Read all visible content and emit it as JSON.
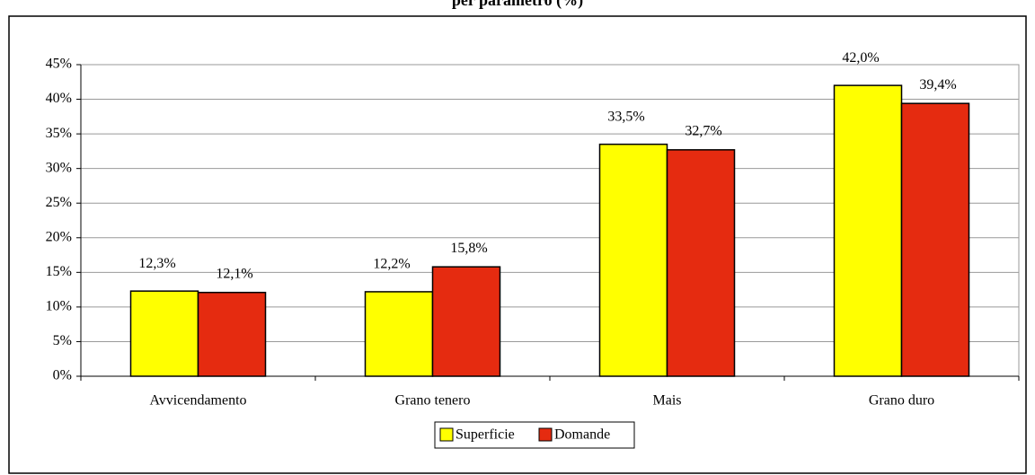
{
  "chart_data": {
    "type": "bar",
    "title": "per parametro (%)",
    "categories": [
      "Avvicendamento",
      "Grano tenero",
      "Mais",
      "Grano duro"
    ],
    "series": [
      {
        "name": "Superficie",
        "color": "#ffff00",
        "values": [
          12.3,
          12.2,
          33.5,
          42.0
        ],
        "value_labels": [
          "12,3%",
          "12,2%",
          "33,5%",
          "42,0%"
        ]
      },
      {
        "name": "Domande",
        "color": "#e52b10",
        "values": [
          12.1,
          15.8,
          32.7,
          39.4
        ],
        "value_labels": [
          "12,1%",
          "15,8%",
          "32,7%",
          "39,4%"
        ]
      }
    ],
    "ylim": [
      0,
      45
    ],
    "yticks": [
      {
        "value": 0,
        "label": "0%"
      },
      {
        "value": 5,
        "label": "5%"
      },
      {
        "value": 10,
        "label": "10%"
      },
      {
        "value": 15,
        "label": "15%"
      },
      {
        "value": 20,
        "label": "20%"
      },
      {
        "value": 25,
        "label": "25%"
      },
      {
        "value": 30,
        "label": "30%"
      },
      {
        "value": 35,
        "label": "35%"
      },
      {
        "value": 40,
        "label": "40%"
      },
      {
        "value": 45,
        "label": "45%"
      }
    ],
    "grid": true,
    "legend": "bottom"
  }
}
